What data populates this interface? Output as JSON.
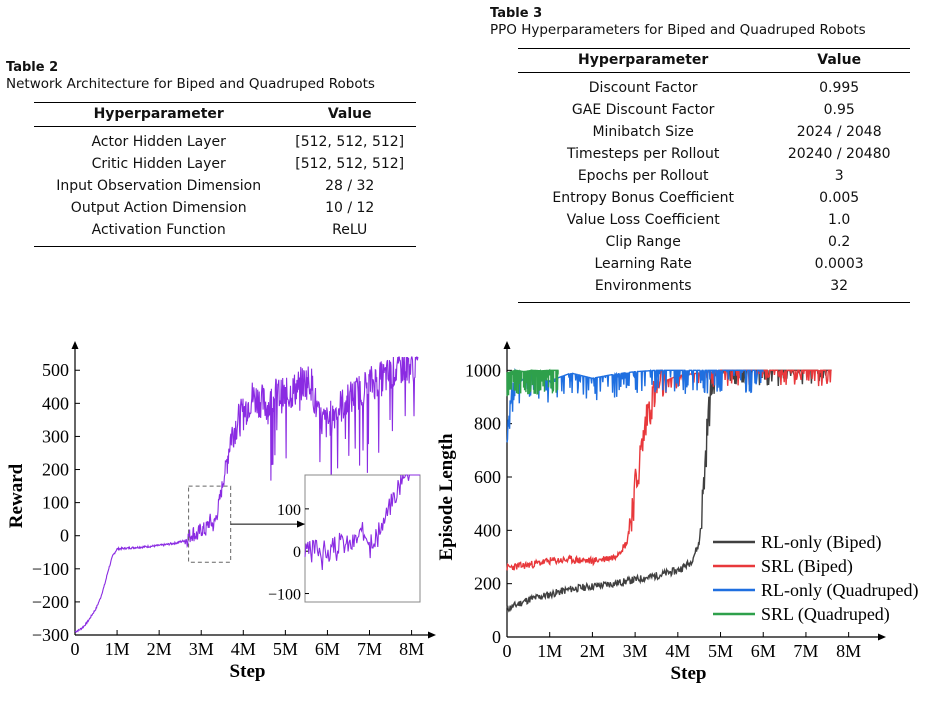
{
  "table2": {
    "number": "Table 2",
    "title": "Network Architecture for Biped and Quadruped Robots",
    "headers": [
      "Hyperparameter",
      "Value"
    ],
    "rows": [
      [
        "Actor Hidden Layer",
        "[512, 512, 512]"
      ],
      [
        "Critic Hidden Layer",
        "[512, 512, 512]"
      ],
      [
        "Input Observation Dimension",
        "28 / 32"
      ],
      [
        "Output Action Dimension",
        "10 / 12"
      ],
      [
        "Activation Function",
        "ReLU"
      ]
    ]
  },
  "table3": {
    "number": "Table 3",
    "title": "PPO Hyperparameters for Biped and Quadruped Robots",
    "headers": [
      "Hyperparameter",
      "Value"
    ],
    "rows": [
      [
        "Discount Factor",
        "0.995"
      ],
      [
        "GAE Discount Factor",
        "0.95"
      ],
      [
        "Minibatch Size",
        "2024 / 2048"
      ],
      [
        "Timesteps per Rollout",
        "20240 / 20480"
      ],
      [
        "Epochs per Rollout",
        "3"
      ],
      [
        "Entropy Bonus Coefficient",
        "0.005"
      ],
      [
        "Value Loss Coefficient",
        "1.0"
      ],
      [
        "Clip Range",
        "0.2"
      ],
      [
        "Learning Rate",
        "0.0003"
      ],
      [
        "Environments",
        "32"
      ]
    ]
  },
  "chart_data": [
    {
      "type": "line",
      "xlabel": "Step",
      "ylabel": "Reward",
      "xlim": [
        0,
        8200000
      ],
      "ylim": [
        -300,
        540
      ],
      "xticks": [
        0,
        1000000,
        2000000,
        3000000,
        4000000,
        5000000,
        6000000,
        7000000,
        8000000
      ],
      "xtick_labels": [
        "0",
        "1M",
        "2M",
        "3M",
        "4M",
        "5M",
        "6M",
        "7M",
        "8M"
      ],
      "yticks": [
        -300,
        -200,
        -100,
        0,
        100,
        200,
        300,
        400,
        500
      ],
      "ytick_labels": [
        "−300",
        "−200",
        "−100",
        "0",
        "100",
        "200",
        "300",
        "400",
        "500"
      ],
      "color": "#8a2be2",
      "series": [
        {
          "x": [
            0,
            100000,
            200000,
            300000,
            400000,
            500000,
            600000,
            700000,
            800000,
            900000,
            1000000,
            1200000,
            1500000,
            1800000,
            2100000,
            2400000,
            2600000,
            2700000,
            2800000,
            2900000,
            3000000,
            3100000,
            3200000,
            3300000,
            3400000,
            3500000,
            3600000,
            3700000,
            3800000,
            3900000,
            4000000,
            4200000,
            4400000,
            4600000,
            4800000,
            5000000,
            5200000,
            5400000,
            5600000,
            5800000,
            6000000,
            6200000,
            6400000,
            6600000,
            6800000,
            7000000,
            7200000,
            7400000,
            7600000,
            7800000,
            8000000,
            8150000
          ],
          "y": [
            -290,
            -285,
            -275,
            -260,
            -240,
            -220,
            -190,
            -150,
            -100,
            -60,
            -40,
            -38,
            -35,
            -32,
            -28,
            -22,
            -15,
            -5,
            10,
            0,
            20,
            15,
            45,
            30,
            80,
            150,
            220,
            300,
            330,
            350,
            370,
            420,
            410,
            390,
            430,
            420,
            440,
            460,
            470,
            350,
            340,
            380,
            400,
            420,
            440,
            460,
            470,
            480,
            500,
            510,
            515,
            525
          ]
        }
      ],
      "inset": {
        "xlim": [
          2700000,
          3700000
        ],
        "ylim": [
          -120,
          180
        ],
        "yticks": [
          -100,
          0,
          100
        ],
        "ytick_labels": [
          "−100",
          "0",
          "100"
        ]
      }
    },
    {
      "type": "line",
      "xlabel": "Step",
      "ylabel": "Episode Length",
      "xlim": [
        0,
        8500000
      ],
      "ylim": [
        0,
        1050
      ],
      "xticks": [
        0,
        1000000,
        2000000,
        3000000,
        4000000,
        5000000,
        6000000,
        7000000,
        8000000
      ],
      "xtick_labels": [
        "0",
        "1M",
        "2M",
        "3M",
        "4M",
        "5M",
        "6M",
        "7M",
        "8M"
      ],
      "yticks": [
        0,
        200,
        400,
        600,
        800,
        1000
      ],
      "ytick_labels": [
        "0",
        "200",
        "400",
        "600",
        "800",
        "1000"
      ],
      "legend": "bottom-right",
      "series": [
        {
          "name": "RL-only (Biped)",
          "color": "#404040",
          "x": [
            0,
            500000,
            1000000,
            1500000,
            2000000,
            2500000,
            3000000,
            3500000,
            4000000,
            4300000,
            4500000,
            4600000,
            4700000,
            4800000,
            4900000,
            5000000,
            5500000,
            6000000,
            7000000,
            7600000
          ],
          "y": [
            105,
            140,
            160,
            180,
            190,
            200,
            215,
            230,
            250,
            280,
            350,
            550,
            800,
            950,
            990,
            1000,
            1000,
            1000,
            1000,
            1000
          ]
        },
        {
          "name": "SRL (Biped)",
          "color": "#e8383b",
          "x": [
            0,
            500000,
            1000000,
            1500000,
            2000000,
            2500000,
            2800000,
            3000000,
            3100000,
            3200000,
            3300000,
            3500000,
            3700000,
            4000000,
            4500000,
            5000000,
            6000000,
            7000000,
            7600000
          ],
          "y": [
            260,
            270,
            285,
            290,
            285,
            300,
            350,
            550,
            650,
            750,
            850,
            930,
            960,
            980,
            990,
            1000,
            1000,
            1000,
            1000
          ]
        },
        {
          "name": "RL-only (Quadruped)",
          "color": "#1f6fe0",
          "x": [
            0,
            100000,
            200000,
            400000,
            600000,
            1000000,
            1500000,
            2000000,
            2500000,
            3000000,
            3500000,
            4000000,
            5000000,
            6000000
          ],
          "y": [
            700,
            860,
            940,
            970,
            985,
            960,
            990,
            970,
            985,
            995,
            1000,
            1000,
            1000,
            1000
          ]
        },
        {
          "name": "SRL (Quadruped)",
          "color": "#2ea04b",
          "x": [
            0,
            200000,
            400000,
            600000,
            800000,
            1000000,
            1200000
          ],
          "y": [
            990,
            1000,
            995,
            1000,
            998,
            1000,
            1000
          ]
        }
      ]
    }
  ]
}
